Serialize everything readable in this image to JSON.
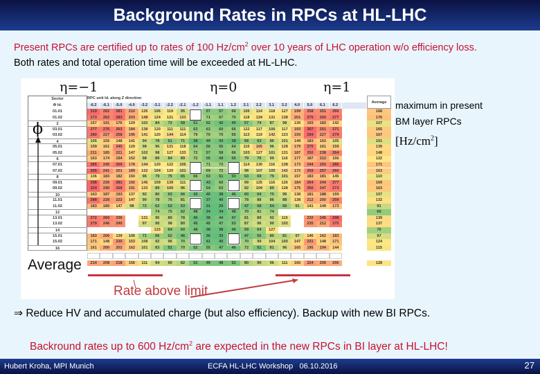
{
  "title": "Background Rates in RPCs at HL-LHC",
  "intro": {
    "line1": "Present RPCs are certified up to rates of 100 Hz/cm",
    "line1_sup": "2",
    "line1_end": " over 10 years of LHC operation w/o efficiency loss.",
    "line2": "Both rates and total operation time will be exceeded at HL-LHC."
  },
  "figure": {
    "eta_labels": [
      "η=−1",
      "η=0",
      "η=1"
    ],
    "phi_label": "ϕ",
    "header": {
      "sector": "Sector",
      "phi_id": "Φ Id.",
      "z_title": "RPC unit Id. along Z direction",
      "average": "Average"
    },
    "columns": [
      "-6.2",
      "-6.1",
      "-5.0",
      "-4.0",
      "-3.2",
      "-3.1",
      "-2.2",
      "-2.1",
      "-1.2",
      "-1.1",
      "1.1",
      "1.2",
      "2.1",
      "2.2",
      "3.1",
      "3.2",
      "4.0",
      "5.0",
      "6.1",
      "6.2"
    ],
    "rows": [
      {
        "sector": "01.01",
        "values": [
          319,
          262,
          281,
          210,
          135,
          106,
          119,
          95,
          null,
          57,
          57,
          66,
          106,
          114,
          118,
          127,
          199,
          258,
          251,
          266
        ],
        "avg": 168,
        "gaps": [
          8
        ]
      },
      {
        "sector": "01.02",
        "values": [
          273,
          262,
          283,
          203,
          148,
          124,
          121,
          133,
          null,
          71,
          67,
          70,
          118,
          134,
          131,
          138,
          201,
          275,
          260,
          277
        ],
        "avg": 176,
        "gaps": [
          8
        ]
      },
      {
        "sector": "2",
        "values": [
          157,
          191,
          176,
          129,
          102,
          84,
          72,
          58,
          51,
          52,
          42,
          45,
          57,
          74,
          87,
          98,
          130,
          193,
          183,
          142
        ],
        "avg": 107
      },
      {
        "sector": "03.01",
        "values": [
          277,
          276,
          263,
          184,
          138,
          120,
          111,
          111,
          63,
          63,
          60,
          66,
          122,
          117,
          106,
          117,
          193,
          307,
          251,
          271
        ],
        "avg": 165
      },
      {
        "sector": "03.02",
        "values": [
          280,
          227,
          258,
          196,
          141,
          120,
          144,
          114,
          79,
          70,
          70,
          65,
          113,
          119,
          142,
          123,
          193,
          294,
          227,
          279
        ],
        "avg": 167
      },
      {
        "sector": "4",
        "values": [
          105,
          155,
          148,
          141,
          94,
          78,
          61,
          71,
          38,
          49,
          43,
          38,
          68,
          63,
          86,
          101,
          149,
          183,
          163,
          105
        ],
        "avg": 101
      },
      {
        "sector": "05.01",
        "values": [
          159,
          161,
          245,
          129,
          98,
          96,
          131,
          118,
          64,
          56,
          56,
          64,
          116,
          165,
          96,
          128,
          179,
          270,
          161,
          159
        ],
        "avg": 139
      },
      {
        "sector": "05.02",
        "values": [
          211,
          185,
          221,
          147,
          102,
          98,
          127,
          133,
          72,
          57,
          58,
          66,
          103,
          127,
          101,
          131,
          187,
          250,
          238,
          264
        ],
        "avg": 148
      },
      {
        "sector": "6",
        "values": [
          163,
          174,
          194,
          152,
          98,
          89,
          84,
          89,
          72,
          55,
          49,
          55,
          79,
          76,
          99,
          116,
          177,
          187,
          212,
          156
        ],
        "avg": 122
      },
      {
        "sector": "07.01",
        "values": [
          285,
          245,
          269,
          178,
          144,
          120,
          122,
          106,
          null,
          71,
          73,
          null,
          114,
          130,
          116,
          138,
          173,
          244,
          250,
          285
        ],
        "avg": 171,
        "gaps": [
          8,
          11
        ]
      },
      {
        "sector": "07.02",
        "values": [
          305,
          241,
          201,
          189,
          132,
          104,
          120,
          101,
          null,
          69,
          72,
          null,
          98,
          107,
          105,
          142,
          172,
          259,
          257,
          260
        ],
        "avg": 163,
        "gaps": [
          8,
          11
        ]
      },
      {
        "sector": "8",
        "values": [
          136,
          183,
          182,
          150,
          96,
          79,
          75,
          65,
          66,
          53,
          51,
          50,
          63,
          69,
          79,
          101,
          157,
          183,
          181,
          145
        ],
        "avg": 110
      },
      {
        "sector": "09.01",
        "values": [
          298,
          230,
          281,
          192,
          145,
          109,
          139,
          111,
          null,
          43,
          60,
          null,
          99,
          125,
          116,
          126,
          184,
          264,
          244,
          277
        ],
        "avg": 169,
        "gaps": [
          8,
          11
        ]
      },
      {
        "sector": "09.02",
        "values": [
          324,
          240,
          268,
          191,
          133,
          89,
          100,
          96,
          null,
          54,
          63,
          null,
          92,
          104,
          89,
          128,
          175,
          266,
          247,
          273
        ],
        "avg": 163,
        "gaps": [
          8,
          11
        ]
      },
      {
        "sector": "10",
        "values": [
          163,
          187,
          193,
          137,
          92,
          80,
          63,
          66,
          43,
          40,
          38,
          46,
          60,
          64,
          75,
          96,
          138,
          181,
          188,
          159
        ],
        "avg": 107
      },
      {
        "sector": "11.01",
        "values": [
          288,
          228,
          222,
          147,
          90,
          78,
          76,
          81,
          null,
          37,
          40,
          null,
          78,
          88,
          86,
          88,
          138,
          212,
          200,
          259
        ],
        "avg": 132,
        "gaps": [
          8,
          11
        ]
      },
      {
        "sector": "11.02",
        "values": [
          183,
          180,
          147,
          98,
          72,
          62,
          52,
          53,
          null,
          31,
          29,
          null,
          47,
          58,
          54,
          66,
          91,
          141,
          149,
          173
        ],
        "avg": 91,
        "gaps": [
          8,
          11
        ]
      },
      {
        "sector": "12",
        "values": [
          null,
          null,
          null,
          null,
          null,
          74,
          75,
          62,
          48,
          34,
          34,
          48,
          70,
          81,
          74,
          null,
          null,
          null,
          null,
          null
        ],
        "avg": 60
      },
      {
        "sector": "13.01",
        "values": [
          272,
          260,
          236,
          null,
          131,
          95,
          89,
          78,
          40,
          38,
          44,
          47,
          81,
          89,
          92,
          115,
          null,
          232,
          245,
          298
        ],
        "avg": 139
      },
      {
        "sector": "13.02",
        "values": [
          279,
          246,
          245,
          null,
          97,
          90,
          98,
          80,
          45,
          45,
          47,
          53,
          87,
          96,
          90,
          102,
          null,
          235,
          212,
          275
        ],
        "avg": 137
      },
      {
        "sector": "14",
        "values": [
          null,
          null,
          null,
          null,
          null,
          133,
          64,
          60,
          48,
          38,
          38,
          46,
          59,
          64,
          127,
          null,
          null,
          null,
          null,
          null
        ],
        "avg": 70
      },
      {
        "sector": "15.01",
        "values": [
          183,
          206,
          139,
          106,
          71,
          66,
          62,
          46,
          null,
          36,
          33,
          null,
          47,
          55,
          80,
          81,
          97,
          146,
          162,
          183
        ],
        "avg": 97,
        "gaps": [
          8,
          11
        ]
      },
      {
        "sector": "15.02",
        "values": [
          171,
          148,
          230,
          153,
          108,
          92,
          96,
          70,
          null,
          41,
          40,
          null,
          70,
          99,
          104,
          100,
          147,
          231,
          148,
          171
        ],
        "avg": 124,
        "gaps": [
          8,
          11
        ]
      },
      {
        "sector": "16",
        "values": [
          161,
          200,
          202,
          162,
          101,
          83,
          51,
          70,
          52,
          55,
          47,
          46,
          72,
          51,
          81,
          96,
          165,
          195,
          194,
          144
        ],
        "avg": 115
      }
    ],
    "average_row": {
      "label": "Average",
      "values": [
        214,
        208,
        218,
        156,
        111,
        94,
        90,
        82,
        52,
        49,
        48,
        52,
        80,
        90,
        96,
        111,
        160,
        224,
        206,
        206
      ],
      "avg": 128
    },
    "rate_label": "Rate above limit",
    "colors": {
      "low": "#63be7b",
      "mid": "#ffe984",
      "high": "#f8696b"
    }
  },
  "side_note": {
    "line1": "maximum in  present",
    "line2": "BM layer RPCs",
    "unit": "[Hz/cm",
    "unit_sup": "2",
    "unit_end": "]"
  },
  "conclusion": {
    "arrow": "⇒",
    "text": "Reduce HV and accumulated charge (but also efficiency). Backup with new BI RPCs."
  },
  "highlight": {
    "text": "Backround rates up to 600 Hz/cm",
    "sup": "2",
    "text_end": " are expected in the new RPCs in BI layer at HL-LHC!"
  },
  "footer": {
    "author": "Hubert Kroha, MPI Munich",
    "event": "ECFA HL-LHC Workshop   06.10.2016",
    "page": "27"
  }
}
